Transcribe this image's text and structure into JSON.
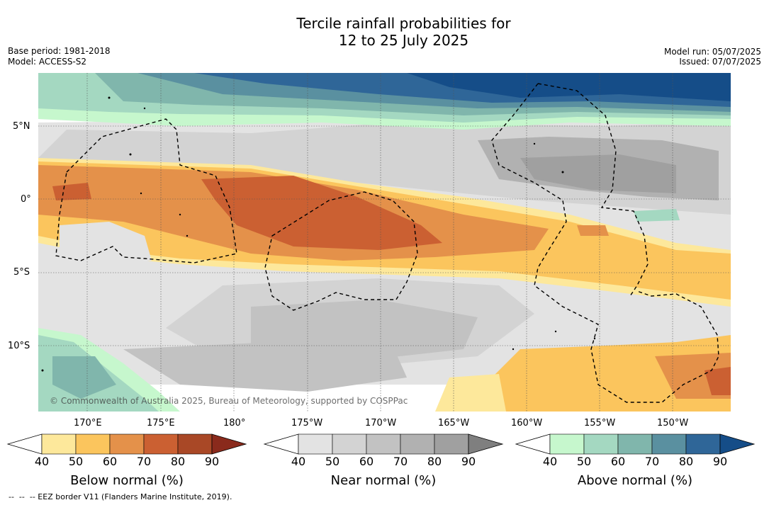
{
  "title": {
    "line1": "Tercile rainfall probabilities for",
    "line2": "12 to 25 July 2025"
  },
  "meta_left": {
    "base_period": "Base period: 1981-2018",
    "model": "Model: ACCESS-S2"
  },
  "meta_right": {
    "model_run": "Model run: 05/07/2025",
    "issued": "Issued: 07/07/2025"
  },
  "latitude_labels": [
    "5°N",
    "0°",
    "5°S",
    "10°S"
  ],
  "longitude_labels": [
    "170°E",
    "175°E",
    "180°",
    "175°W",
    "170°W",
    "165°W",
    "160°W",
    "155°W",
    "150°W"
  ],
  "copyright": "© Commonwealth of Australia 2025, Bureau of Meteorology, supported by COSPPac",
  "colorbars": [
    {
      "label": "Below normal (%)",
      "ticks": [
        "40",
        "50",
        "60",
        "70",
        "80",
        "90"
      ],
      "colors": [
        "#ffffff",
        "#fde89b",
        "#fbc55d",
        "#e4914a",
        "#cb6032",
        "#a94826",
        "#8a2a1c"
      ]
    },
    {
      "label": "Near normal (%)",
      "ticks": [
        "40",
        "50",
        "60",
        "70",
        "80",
        "90"
      ],
      "colors": [
        "#ffffff",
        "#e3e3e3",
        "#d3d3d3",
        "#c2c2c2",
        "#b1b1b1",
        "#a0a0a0",
        "#7f7f7f"
      ]
    },
    {
      "label": "Above normal (%)",
      "ticks": [
        "40",
        "50",
        "60",
        "70",
        "80",
        "90"
      ],
      "colors": [
        "#ffffff",
        "#c6f7cd",
        "#a4d8c1",
        "#80b6ac",
        "#5a90a0",
        "#2f6698",
        "#154d88"
      ]
    }
  ],
  "footnote": "--  --  -- EEZ border V11 (Flanders Marine Institute, 2019)."
}
